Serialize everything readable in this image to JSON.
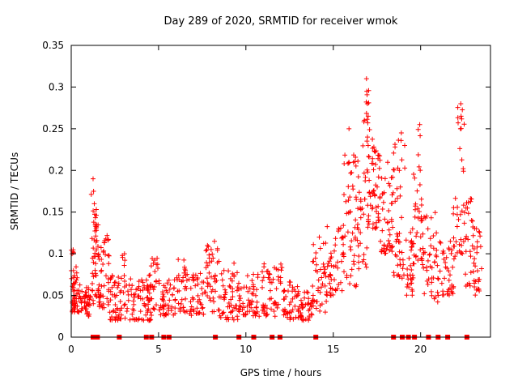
{
  "chart_data": {
    "type": "scatter",
    "title": "Day 289 of 2020, SRMTID for receiver wmok",
    "xlabel": "GPS time / hours",
    "ylabel": "SRMTID / TECUs",
    "xlim": [
      0,
      24
    ],
    "ylim": [
      0,
      0.35
    ],
    "xticks": {
      "values": [
        0,
        5,
        10,
        15,
        20
      ],
      "labels": [
        "0",
        "5",
        "10",
        "15",
        "20"
      ]
    },
    "yticks": {
      "values": [
        0,
        0.05,
        0.1,
        0.15,
        0.2,
        0.25,
        0.3,
        0.35
      ],
      "labels": [
        "0",
        "0.05",
        "0.1",
        "0.15",
        "0.2",
        "0.25",
        "0.3",
        "0.35"
      ]
    },
    "grid": false,
    "legend": "none",
    "marker": "plus",
    "marker_color": "#ff0000",
    "border_color": "#000000",
    "description": "Dense red plus-marker scatter; point cloud encoded as uniform clusters {x0,x1,y0,y1,n} plus explicit outlier points; red squares flag epochs on the y=0 axis line.",
    "clusters": [
      {
        "x0": 0.0,
        "x1": 0.35,
        "y0": 0.03,
        "y1": 0.105,
        "n": 25
      },
      {
        "x0": 0.05,
        "x1": 0.6,
        "y0": 0.03,
        "y1": 0.065,
        "n": 40
      },
      {
        "x0": 0.6,
        "x1": 1.1,
        "y0": 0.025,
        "y1": 0.06,
        "n": 40
      },
      {
        "x0": 1.1,
        "x1": 1.6,
        "y0": 0.04,
        "y1": 0.135,
        "n": 45
      },
      {
        "x0": 1.15,
        "x1": 1.45,
        "y0": 0.1,
        "y1": 0.19,
        "n": 12
      },
      {
        "x0": 1.6,
        "x1": 2.2,
        "y0": 0.035,
        "y1": 0.125,
        "n": 40
      },
      {
        "x0": 2.2,
        "x1": 3.2,
        "y0": 0.02,
        "y1": 0.075,
        "n": 55
      },
      {
        "x0": 2.9,
        "x1": 3.2,
        "y0": 0.06,
        "y1": 0.1,
        "n": 6
      },
      {
        "x0": 3.2,
        "x1": 4.6,
        "y0": 0.02,
        "y1": 0.07,
        "n": 70
      },
      {
        "x0": 4.4,
        "x1": 5.1,
        "y0": 0.03,
        "y1": 0.095,
        "n": 30
      },
      {
        "x0": 5.1,
        "x1": 6.0,
        "y0": 0.025,
        "y1": 0.07,
        "n": 45
      },
      {
        "x0": 6.0,
        "x1": 6.6,
        "y0": 0.03,
        "y1": 0.095,
        "n": 30
      },
      {
        "x0": 6.6,
        "x1": 7.6,
        "y0": 0.025,
        "y1": 0.08,
        "n": 45
      },
      {
        "x0": 7.6,
        "x1": 8.5,
        "y0": 0.03,
        "y1": 0.11,
        "n": 45
      },
      {
        "x0": 8.5,
        "x1": 9.6,
        "y0": 0.02,
        "y1": 0.08,
        "n": 50
      },
      {
        "x0": 9.3,
        "x1": 9.6,
        "y0": 0.06,
        "y1": 0.09,
        "n": 6
      },
      {
        "x0": 9.6,
        "x1": 10.6,
        "y0": 0.025,
        "y1": 0.08,
        "n": 45
      },
      {
        "x0": 10.6,
        "x1": 12.1,
        "y0": 0.025,
        "y1": 0.09,
        "n": 60
      },
      {
        "x0": 12.1,
        "x1": 13.0,
        "y0": 0.02,
        "y1": 0.07,
        "n": 45
      },
      {
        "x0": 13.0,
        "x1": 13.8,
        "y0": 0.02,
        "y1": 0.055,
        "n": 40
      },
      {
        "x0": 13.8,
        "x1": 14.6,
        "y0": 0.03,
        "y1": 0.12,
        "n": 40
      },
      {
        "x0": 14.6,
        "x1": 15.6,
        "y0": 0.05,
        "y1": 0.135,
        "n": 50
      },
      {
        "x0": 15.6,
        "x1": 16.4,
        "y0": 0.06,
        "y1": 0.22,
        "n": 50
      },
      {
        "x0": 16.4,
        "x1": 17.0,
        "y0": 0.08,
        "y1": 0.27,
        "n": 40
      },
      {
        "x0": 16.85,
        "x1": 17.1,
        "y0": 0.24,
        "y1": 0.31,
        "n": 8
      },
      {
        "x0": 17.0,
        "x1": 17.7,
        "y0": 0.13,
        "y1": 0.245,
        "n": 55
      },
      {
        "x0": 17.7,
        "x1": 18.4,
        "y0": 0.1,
        "y1": 0.22,
        "n": 45
      },
      {
        "x0": 18.4,
        "x1": 19.1,
        "y0": 0.07,
        "y1": 0.245,
        "n": 45
      },
      {
        "x0": 19.1,
        "x1": 19.6,
        "y0": 0.05,
        "y1": 0.13,
        "n": 30
      },
      {
        "x0": 19.6,
        "x1": 20.1,
        "y0": 0.07,
        "y1": 0.2,
        "n": 30
      },
      {
        "x0": 19.85,
        "x1": 20.0,
        "y0": 0.2,
        "y1": 0.255,
        "n": 5
      },
      {
        "x0": 20.1,
        "x1": 21.0,
        "y0": 0.04,
        "y1": 0.15,
        "n": 45
      },
      {
        "x0": 21.0,
        "x1": 21.9,
        "y0": 0.05,
        "y1": 0.12,
        "n": 40
      },
      {
        "x0": 21.8,
        "x1": 22.1,
        "y0": 0.08,
        "y1": 0.17,
        "n": 12
      },
      {
        "x0": 22.1,
        "x1": 22.5,
        "y0": 0.1,
        "y1": 0.28,
        "n": 25
      },
      {
        "x0": 22.5,
        "x1": 23.1,
        "y0": 0.06,
        "y1": 0.17,
        "n": 35
      },
      {
        "x0": 23.1,
        "x1": 23.5,
        "y0": 0.05,
        "y1": 0.13,
        "n": 20
      }
    ],
    "outliers": [
      [
        0.05,
        0.1
      ],
      [
        1.25,
        0.19
      ],
      [
        1.28,
        0.175
      ],
      [
        1.32,
        0.16
      ],
      [
        3.05,
        0.1
      ],
      [
        8.2,
        0.115
      ],
      [
        14.2,
        0.12
      ],
      [
        15.9,
        0.25
      ],
      [
        16.9,
        0.31
      ],
      [
        16.92,
        0.295
      ],
      [
        16.95,
        0.28
      ],
      [
        17.0,
        0.265
      ],
      [
        18.9,
        0.245
      ],
      [
        19.95,
        0.255
      ],
      [
        22.3,
        0.28
      ],
      [
        22.32,
        0.265
      ],
      [
        22.28,
        0.25
      ],
      [
        23.2,
        0.13
      ]
    ],
    "zero_markers_x": [
      1.25,
      1.5,
      2.75,
      4.3,
      4.6,
      5.3,
      5.6,
      8.25,
      9.6,
      10.45,
      11.5,
      11.95,
      14.0,
      18.45,
      18.95,
      19.3,
      19.65,
      20.45,
      21.0,
      21.55,
      22.65
    ]
  }
}
